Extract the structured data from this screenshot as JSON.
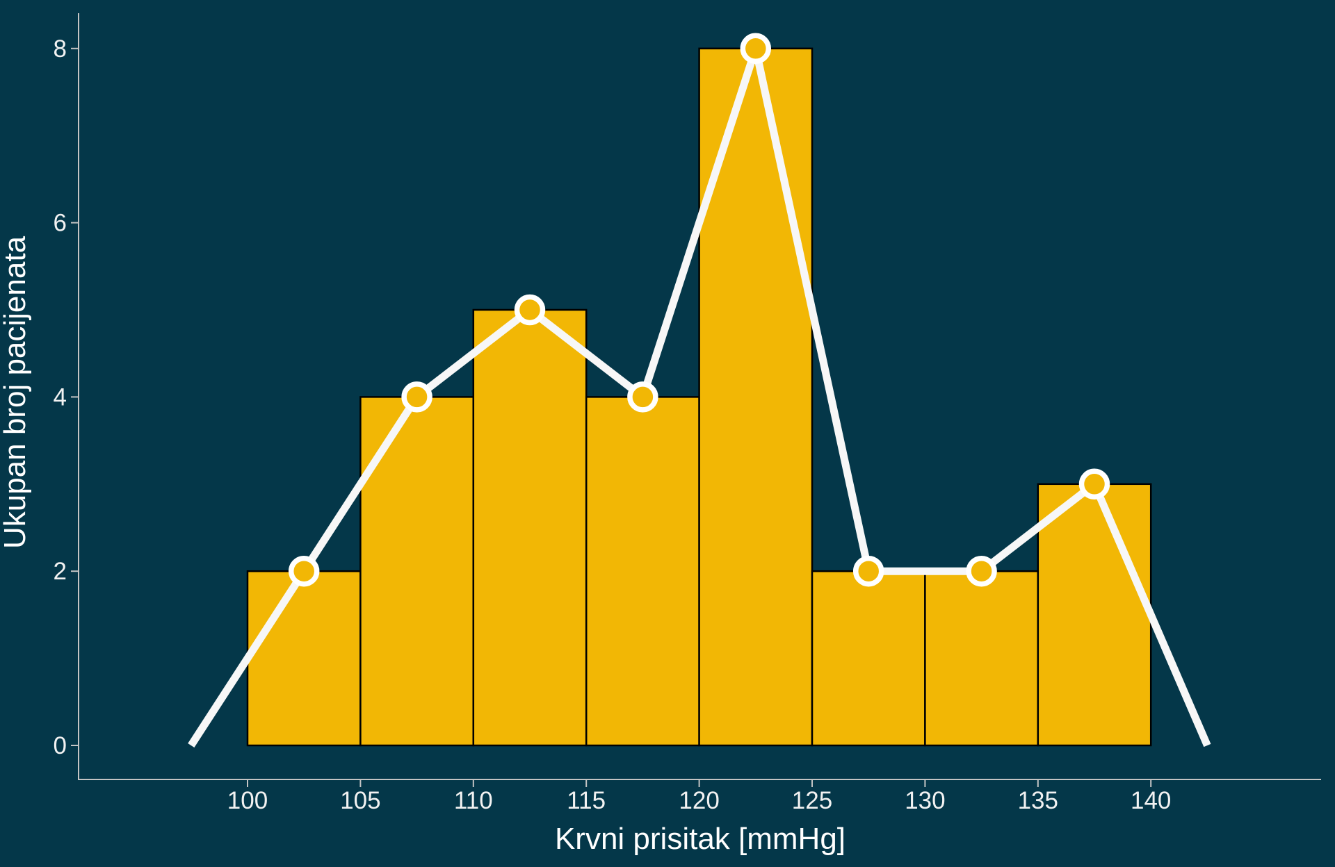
{
  "chart_data": {
    "type": "bar",
    "subtype": "histogram-with-frequency-polygon",
    "title": "",
    "xlabel": "Krvni prisitak [mmHg]",
    "ylabel": "Ukupan broj pacijenata",
    "bin_width": 5,
    "bins": [
      {
        "start": 100,
        "end": 105,
        "count": 2
      },
      {
        "start": 105,
        "end": 110,
        "count": 4
      },
      {
        "start": 110,
        "end": 115,
        "count": 5
      },
      {
        "start": 115,
        "end": 120,
        "count": 4
      },
      {
        "start": 120,
        "end": 125,
        "count": 8
      },
      {
        "start": 125,
        "end": 130,
        "count": 2
      },
      {
        "start": 130,
        "end": 135,
        "count": 2
      },
      {
        "start": 135,
        "end": 140,
        "count": 3
      }
    ],
    "overlay_line": {
      "name": "frequency-polygon",
      "points": [
        {
          "x": 97.5,
          "y": 0,
          "marker": false
        },
        {
          "x": 102.5,
          "y": 2,
          "marker": true
        },
        {
          "x": 107.5,
          "y": 4,
          "marker": true
        },
        {
          "x": 112.5,
          "y": 5,
          "marker": true
        },
        {
          "x": 117.5,
          "y": 4,
          "marker": true
        },
        {
          "x": 122.5,
          "y": 8,
          "marker": true
        },
        {
          "x": 127.5,
          "y": 2,
          "marker": true
        },
        {
          "x": 132.5,
          "y": 2,
          "marker": true
        },
        {
          "x": 137.5,
          "y": 3,
          "marker": true
        },
        {
          "x": 142.5,
          "y": 0,
          "marker": false
        }
      ]
    },
    "xticks": [
      100,
      105,
      110,
      115,
      120,
      125,
      130,
      135,
      140
    ],
    "yticks": [
      0,
      2,
      4,
      6,
      8
    ],
    "xlim": [
      92.5,
      147.5
    ],
    "ylim": [
      0,
      8.4
    ],
    "grid": false,
    "legend": null,
    "colors": {
      "background": "#043749",
      "bar_fill": "#f2b705",
      "bar_edge": "#000000",
      "line": "#f7f7f7",
      "marker_face": "#f2b705",
      "marker_edge": "#ffffff",
      "axis": "#c4c4c4",
      "tick_label": "#f2f2f2",
      "axis_label": "#ffffff"
    }
  }
}
